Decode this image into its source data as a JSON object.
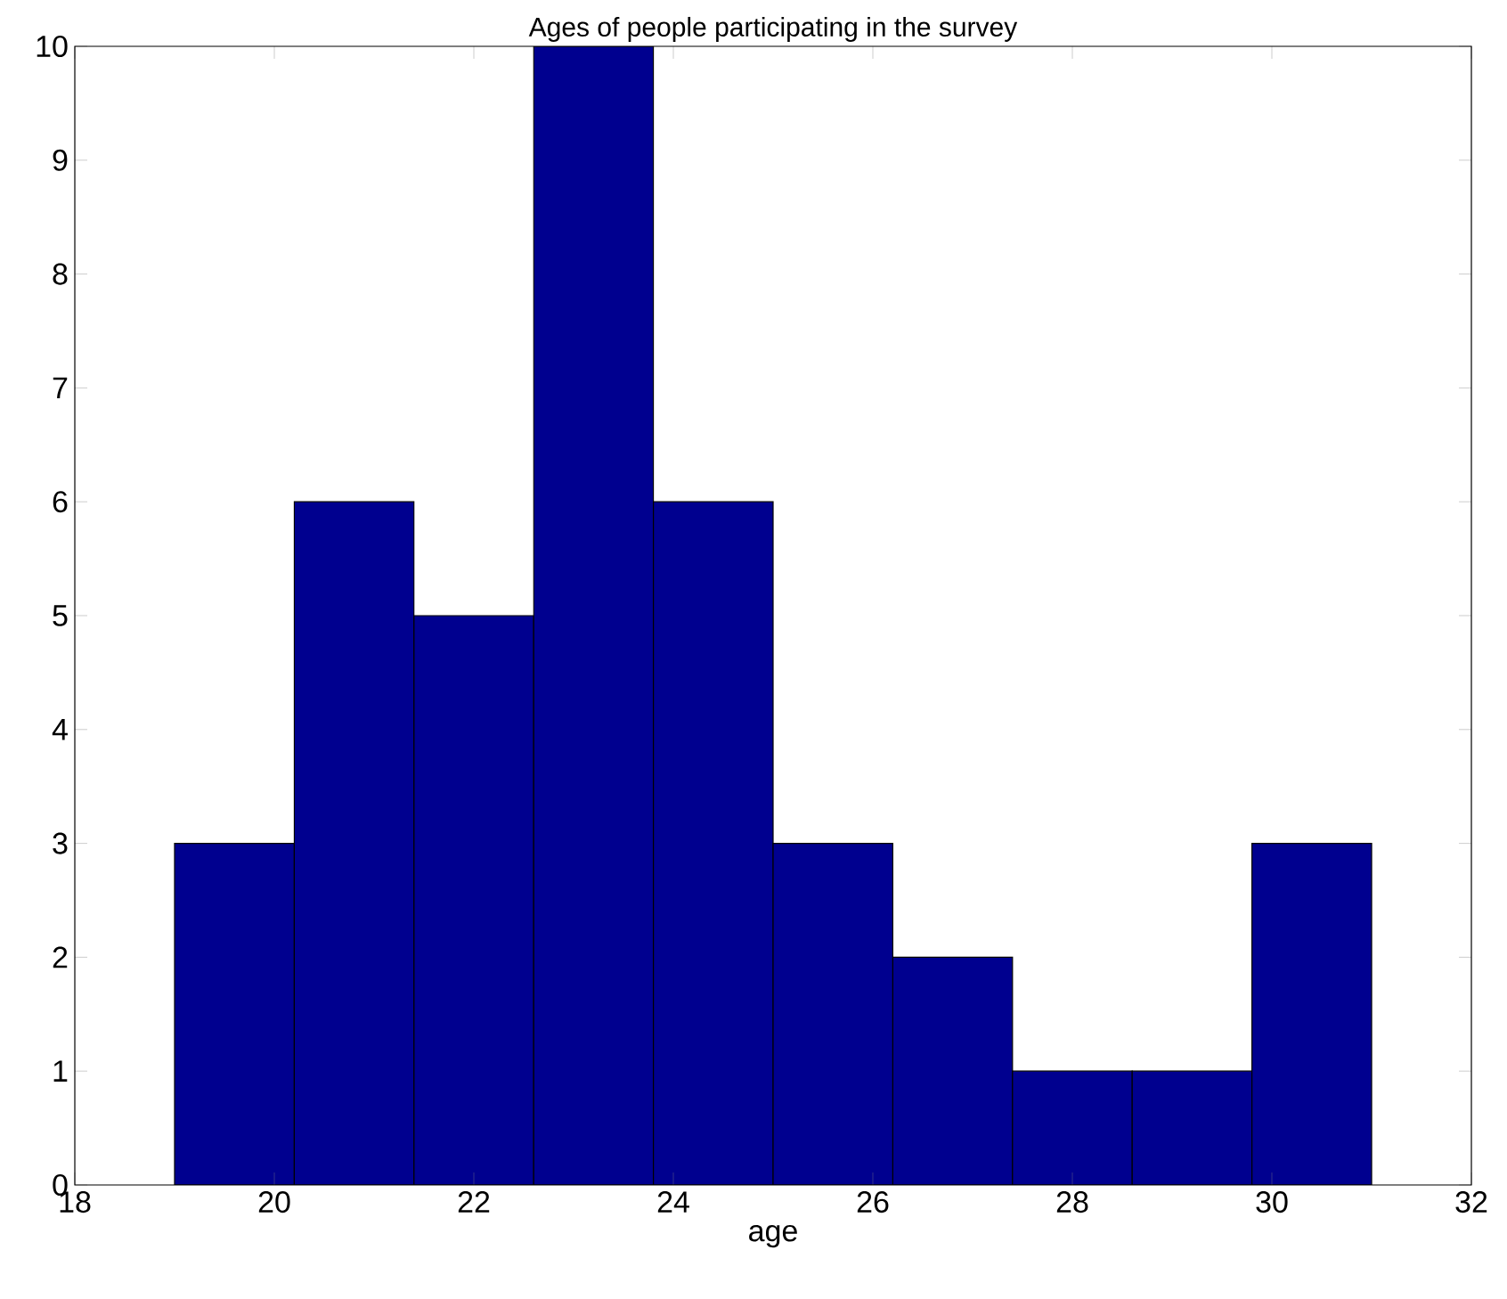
{
  "chart_data": {
    "type": "histogram",
    "title": "Ages of people participating in the survey",
    "xlabel": "age",
    "bins": [
      19,
      20.2,
      21.4,
      22.6,
      23.8,
      25,
      26.2,
      27.4,
      28.6,
      29.8,
      31
    ],
    "values": [
      3,
      6,
      5,
      10,
      6,
      3,
      2,
      1,
      1,
      3
    ],
    "color": "#00008f",
    "xlim": [
      18,
      32
    ],
    "xticks": [
      18,
      20,
      22,
      24,
      26,
      28,
      30,
      32
    ],
    "ylim": [
      0,
      10
    ],
    "yticks": [
      0,
      1,
      2,
      3,
      4,
      5,
      6,
      7,
      8,
      9,
      10
    ]
  }
}
